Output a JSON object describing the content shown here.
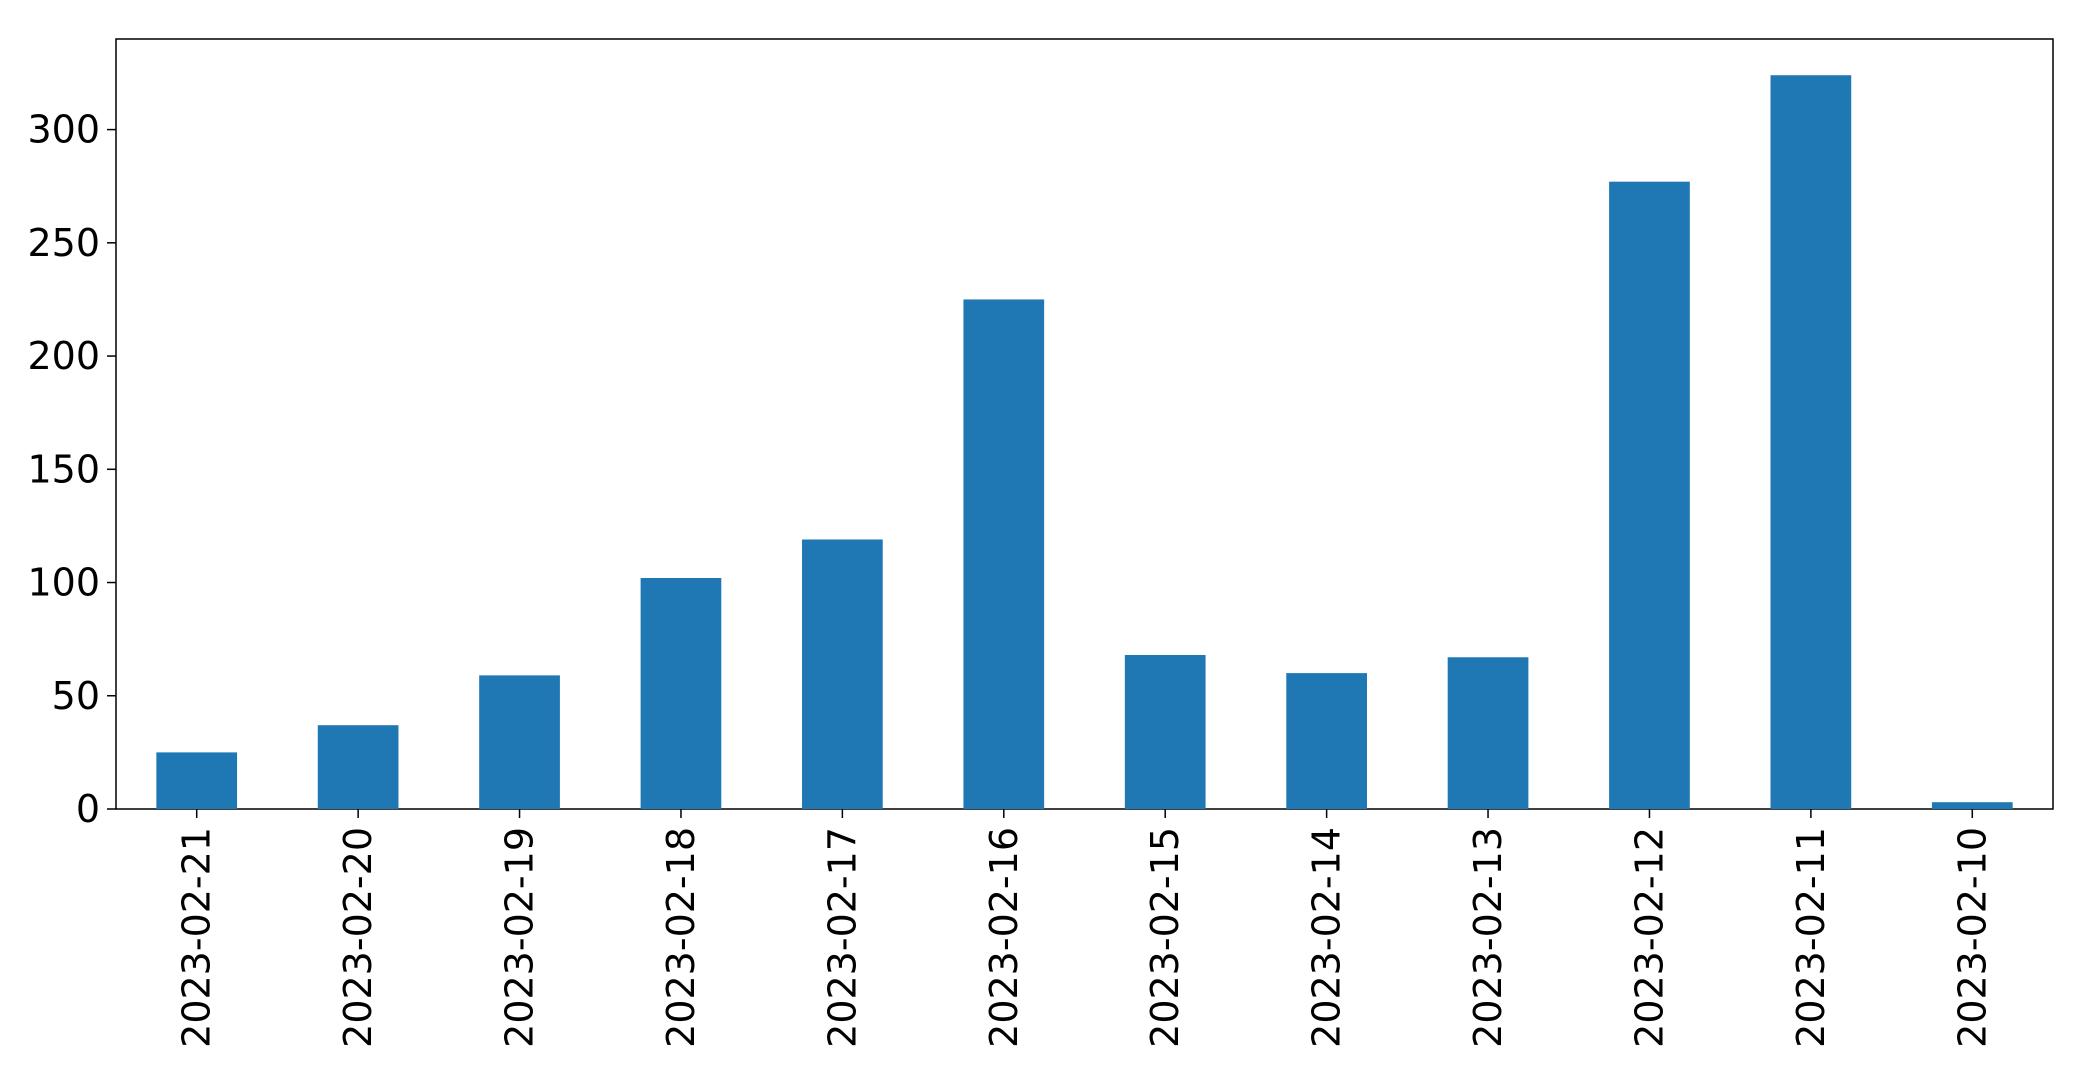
{
  "chart_data": {
    "type": "bar",
    "categories": [
      "2023-02-21",
      "2023-02-20",
      "2023-02-19",
      "2023-02-18",
      "2023-02-17",
      "2023-02-16",
      "2023-02-15",
      "2023-02-14",
      "2023-02-13",
      "2023-02-12",
      "2023-02-11",
      "2023-02-10"
    ],
    "values": [
      25,
      37,
      59,
      102,
      119,
      225,
      68,
      60,
      67,
      277,
      324,
      3
    ],
    "color": "#1f77b4",
    "ylim": [
      0,
      340
    ],
    "yticks": [
      0,
      50,
      100,
      150,
      200,
      250,
      300
    ],
    "grid": false
  }
}
